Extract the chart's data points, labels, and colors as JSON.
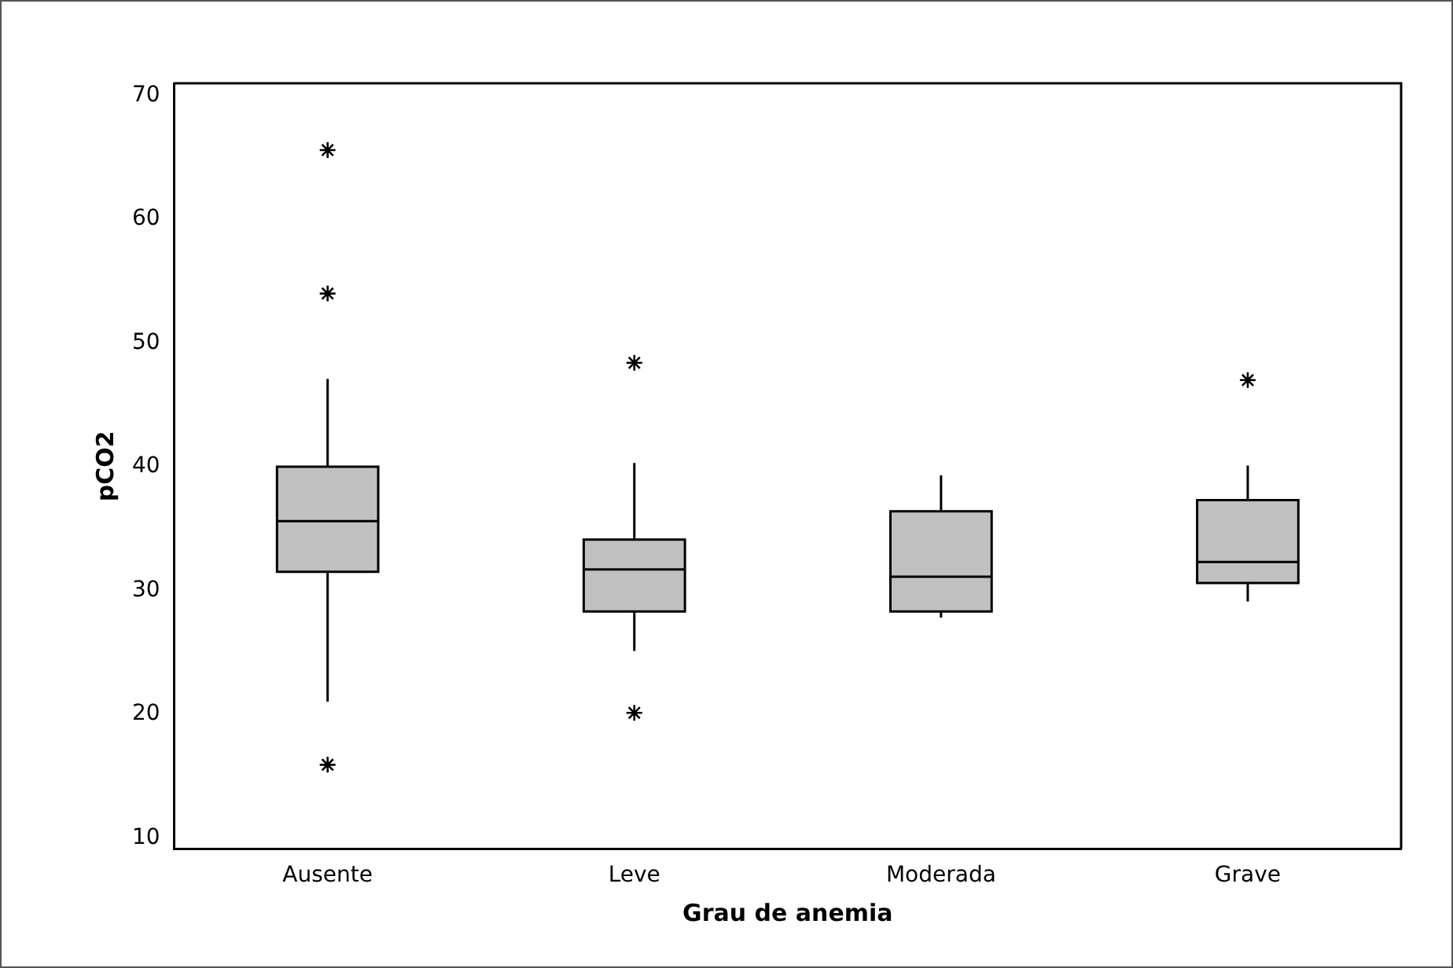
{
  "chart_data": {
    "type": "box",
    "xlabel": "Grau de anemia",
    "ylabel": "pCO2",
    "categories": [
      "Ausente",
      "Leve",
      "Moderada",
      "Grave"
    ],
    "ylim": [
      9.1,
      71
    ],
    "yticks": [
      10,
      20,
      30,
      40,
      50,
      60,
      70
    ],
    "series": [
      {
        "color": "#c0c0c0",
        "boxes": [
          {
            "low": 21.0,
            "q1": 31.5,
            "median": 35.6,
            "q3": 40.0,
            "high": 47.1,
            "outliers": [
              65.6,
              54.0,
              15.9
            ]
          },
          {
            "low": 25.1,
            "q1": 28.3,
            "median": 31.7,
            "q3": 34.1,
            "high": 40.3,
            "outliers": [
              48.4,
              20.1
            ]
          },
          {
            "low": 27.8,
            "q1": 28.3,
            "median": 31.1,
            "q3": 36.4,
            "high": 39.3
          },
          {
            "low": 29.1,
            "q1": 30.6,
            "median": 32.3,
            "q3": 37.3,
            "high": 40.1,
            "outliers": [
              47.0
            ]
          }
        ]
      }
    ]
  }
}
